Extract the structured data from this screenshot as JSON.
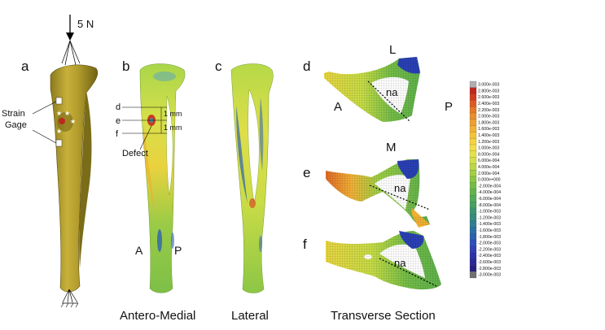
{
  "panels": {
    "a": "a",
    "b": "b",
    "c": "c",
    "d": "d",
    "e": "e",
    "f": "f"
  },
  "load_label": "5 N",
  "strain_gage_label": [
    "Strain",
    "Gage"
  ],
  "defect_label": "Defect",
  "section_letters": [
    "d",
    "e",
    "f"
  ],
  "dimension_labels": [
    "1 mm",
    "1 mm"
  ],
  "side_labels": {
    "A": "A",
    "P": "P",
    "L": "L",
    "M": "M",
    "na": "na"
  },
  "captions": {
    "antero_medial": "Antero-Medial",
    "lateral": "Lateral",
    "transverse": "Transverse Section"
  },
  "colorbar": {
    "labels": [
      "3.000e-003",
      "2.800e-003",
      "2.600e-003",
      "2.400e-003",
      "2.200e-003",
      "2.000e-003",
      "1.800e-003",
      "1.600e-003",
      "1.400e-003",
      "1.200e-003",
      "1.000e-003",
      "8.000e-004",
      "6.000e-004",
      "4.000e-004",
      "2.000e-004",
      "0.000e+000",
      "-2.000e-004",
      "-4.000e-004",
      "-6.000e-004",
      "-8.000e-004",
      "-1.000e-003",
      "-1.200e-003",
      "-1.400e-003",
      "-1.600e-003",
      "-1.800e-003",
      "-2.000e-003",
      "-2.200e-003",
      "-2.400e-003",
      "-2.600e-003",
      "-2.800e-003",
      "-3.000e-003"
    ],
    "colors": [
      "#b0b0b0",
      "#c0281e",
      "#d23c20",
      "#df5a22",
      "#e67826",
      "#eb8e2c",
      "#ef9f30",
      "#f2b036",
      "#f5c23a",
      "#f6d240",
      "#f2de48",
      "#e4e24c",
      "#d2e04a",
      "#bcd846",
      "#a4cf44",
      "#8cc642",
      "#74bd48",
      "#62b44c",
      "#52aa58",
      "#46a064",
      "#3a9670",
      "#348c80",
      "#2e7f92",
      "#2a70a4",
      "#2a60b0",
      "#2c50b8",
      "#2e40b4",
      "#2e32a8",
      "#2c2898",
      "#281e82",
      "#707070"
    ]
  }
}
